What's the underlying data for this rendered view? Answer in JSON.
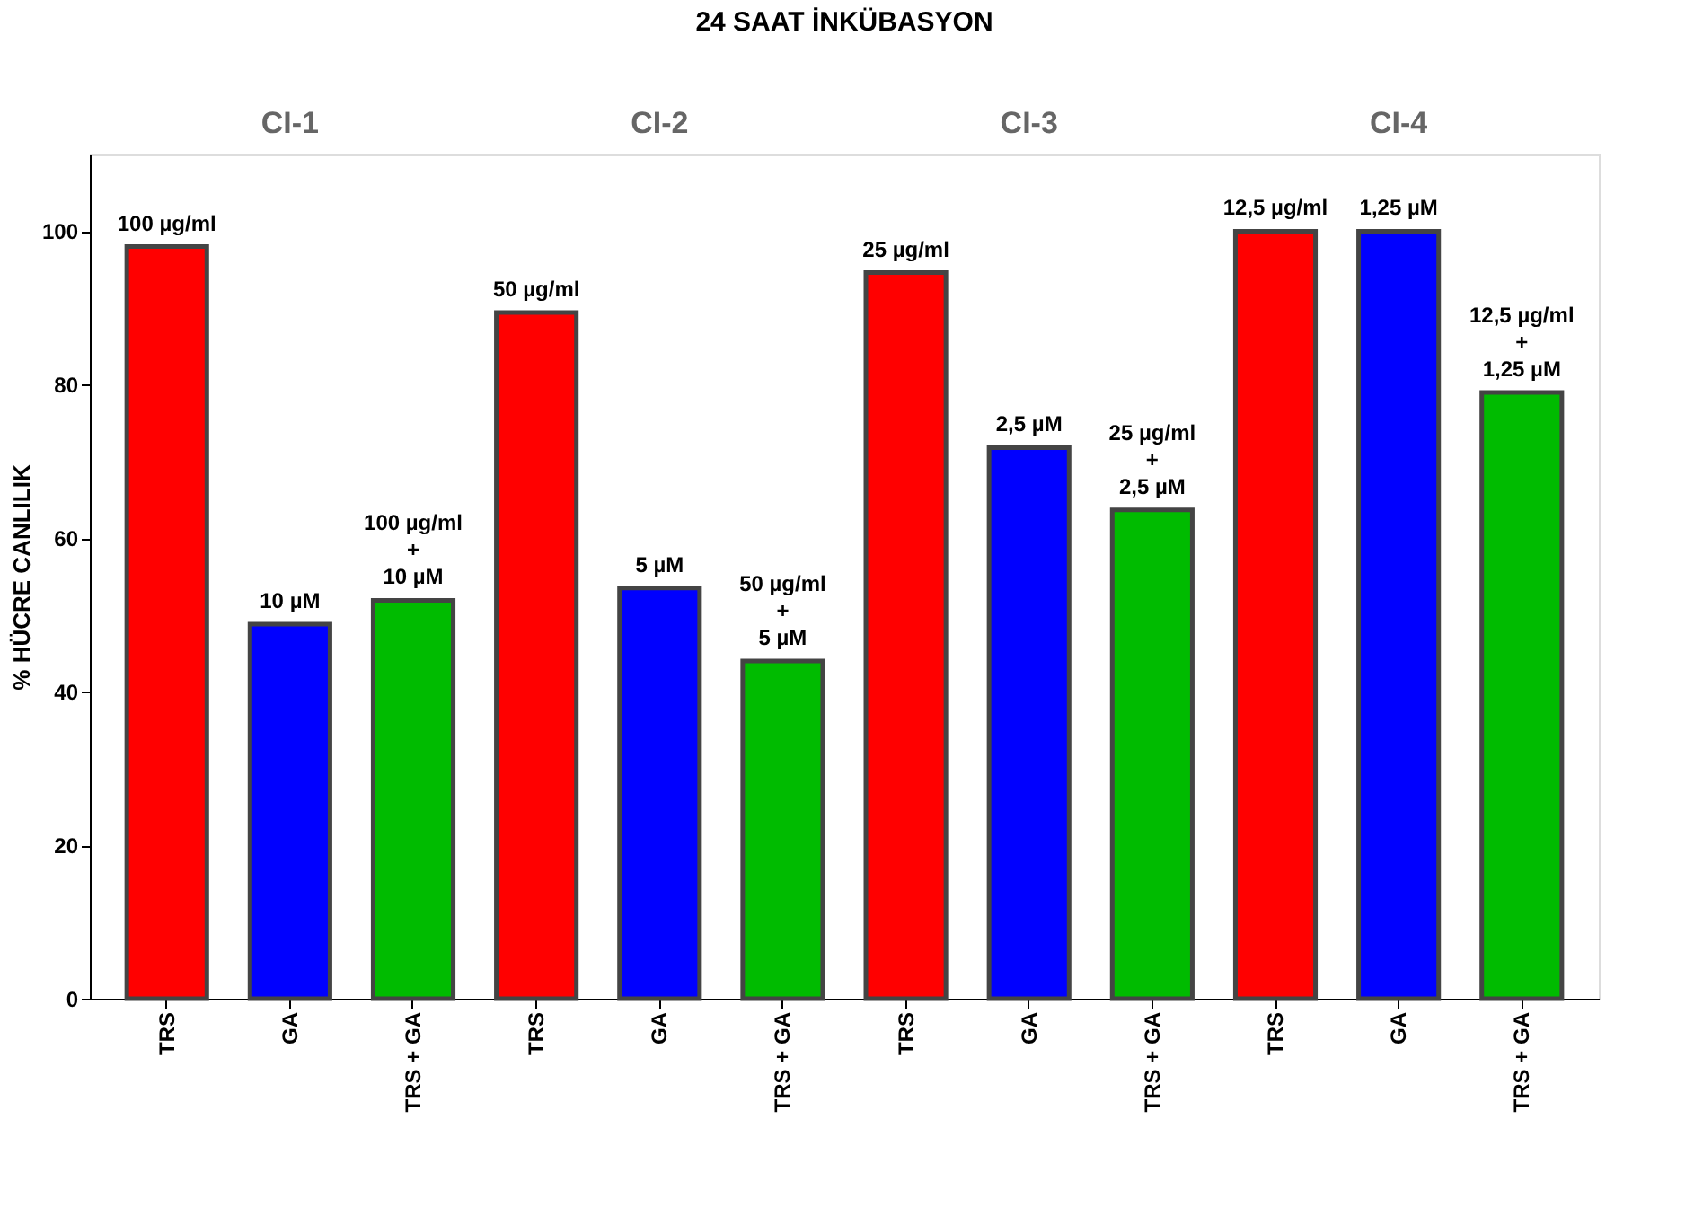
{
  "chart_data": {
    "type": "bar",
    "title": "24 SAAT İNKÜBASYON",
    "ylabel": "% HÜCRE CANLILIK",
    "categories": [
      "TRS",
      "GA",
      "TRS + GA",
      "TRS",
      "GA",
      "TRS + GA",
      "TRS",
      "GA",
      "TRS + GA",
      "TRS",
      "GA",
      "TRS + GA"
    ],
    "values": [
      98,
      48.8,
      51.9,
      89.4,
      53.5,
      44,
      94.6,
      71.8,
      63.7,
      100,
      100,
      79
    ],
    "colors": [
      "#ff0000",
      "#0000ff",
      "#00bb00",
      "#ff0000",
      "#0000ff",
      "#00bb00",
      "#ff0000",
      "#0000ff",
      "#00bb00",
      "#ff0000",
      "#0000ff",
      "#00bb00"
    ],
    "annotations": [
      "CI-1",
      "CI-2",
      "CI-3",
      "CI-4",
      "100 µg/ml",
      "10 µM",
      "100 µg/ml\n+\n10 µM",
      "50 µg/ml",
      "5 µM",
      "50 µg/ml\n+\n5 µM",
      "25 µg/ml",
      "2,5 µM",
      "25 µg/ml\n+\n2,5 µM",
      "12,5 µg/ml",
      "1,25 µM",
      "12,5 µg/ml\n+\n1,25 µM"
    ],
    "ylim": [
      0,
      110
    ],
    "yticks": [
      0,
      20,
      40,
      60,
      80,
      100
    ],
    "grid": false
  }
}
